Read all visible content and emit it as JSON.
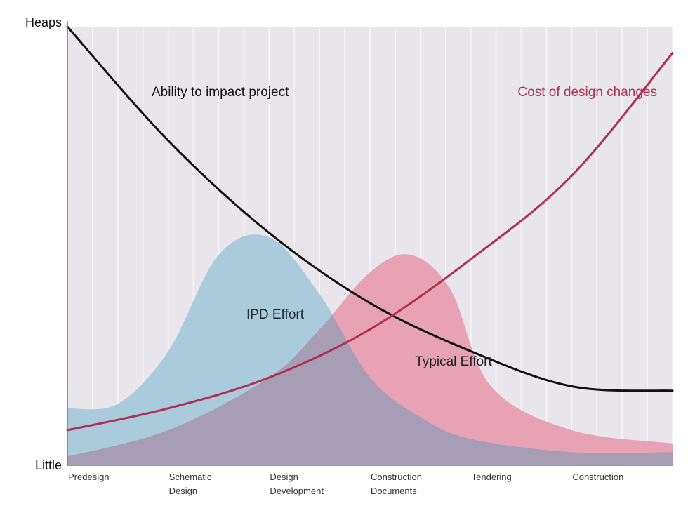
{
  "chart_data": {
    "type": "area",
    "categories": [
      [
        "Predesign"
      ],
      [
        "Schematic",
        "Design"
      ],
      [
        "Design",
        "Development"
      ],
      [
        "Construction",
        "Documents"
      ],
      [
        "Tendering"
      ],
      [
        "Construction"
      ]
    ],
    "y_ticks": [
      "Little",
      "Heaps"
    ],
    "ylim": [
      0,
      100
    ],
    "grid": true,
    "colors": {
      "background": "#e8e6eb",
      "grid": "#f6f5f7",
      "ipd_effort": "#a9cbdb",
      "typical_effort": "#e8a2b6",
      "overlap": "#a79db4",
      "ability": "#111111",
      "cost": "#b0304f"
    },
    "series": [
      {
        "name": "Ability to impact project",
        "type": "line",
        "x": [
          0,
          1,
          2,
          3,
          4,
          5,
          6
        ],
        "values": [
          100,
          74,
          53,
          37,
          26,
          18,
          17
        ]
      },
      {
        "name": "Cost of design changes",
        "type": "line",
        "x": [
          0,
          1,
          2,
          3,
          4,
          5,
          6
        ],
        "values": [
          8,
          13,
          20,
          31,
          47,
          66,
          94
        ]
      },
      {
        "name": "IPD Effort",
        "type": "area",
        "x": [
          0,
          0.5,
          1,
          1.5,
          2,
          2.5,
          3,
          3.5,
          4,
          5,
          6
        ],
        "values": [
          13,
          14,
          26,
          48,
          52,
          39,
          20,
          11,
          6,
          3,
          3
        ]
      },
      {
        "name": "Typical Effort",
        "type": "area",
        "x": [
          0,
          1,
          2,
          2.5,
          3,
          3.4,
          3.8,
          4.2,
          5,
          6
        ],
        "values": [
          2,
          8,
          20,
          31,
          44,
          48,
          40,
          18,
          8,
          5
        ]
      }
    ]
  }
}
